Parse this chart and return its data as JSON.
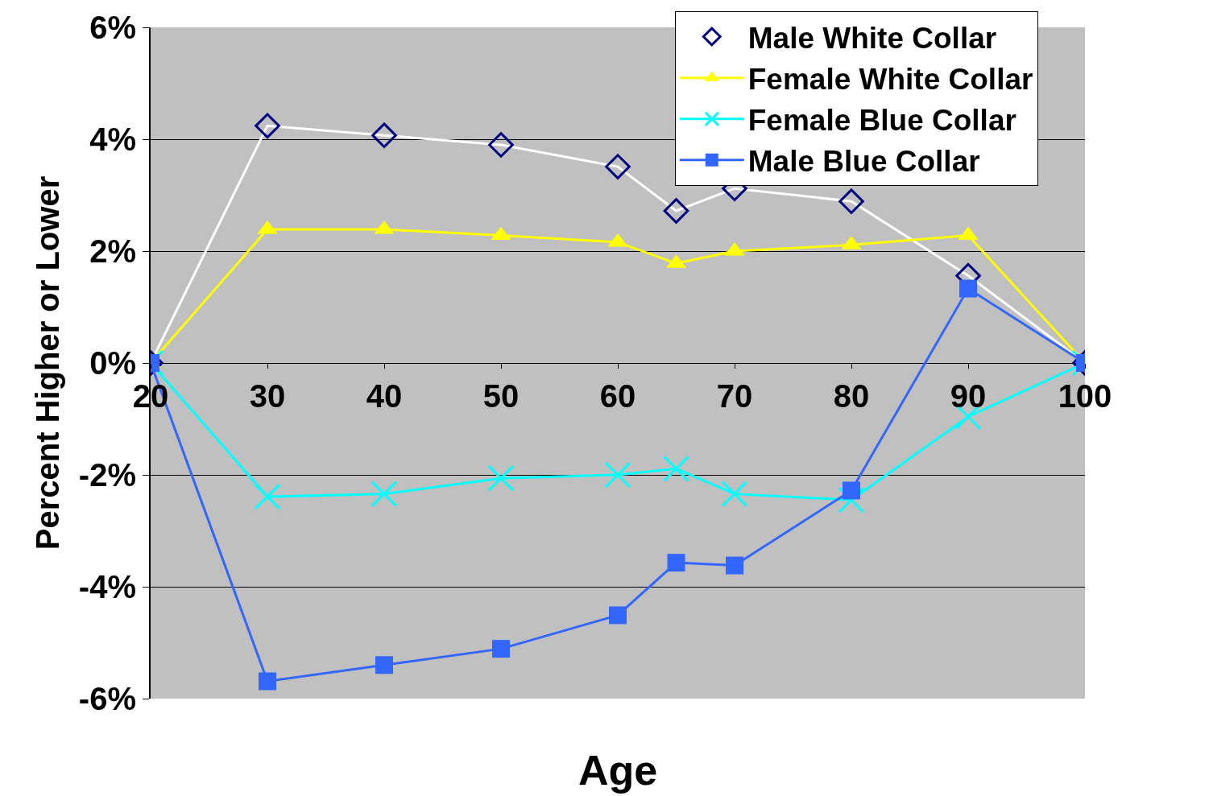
{
  "chart_data": {
    "type": "line",
    "xlabel": "Age",
    "ylabel": "Percent Higher or Lower",
    "x": [
      20,
      30,
      40,
      50,
      60,
      65,
      70,
      80,
      90,
      100
    ],
    "series": [
      {
        "name": "Male White Collar",
        "color": "#000080",
        "marker": "diamond",
        "values": [
          0,
          4.24,
          4.07,
          3.9,
          3.51,
          2.72,
          3.12,
          2.89,
          1.56,
          0
        ]
      },
      {
        "name": "Female White Collar",
        "color": "#ffff00",
        "marker": "triangle",
        "values": [
          0,
          2.39,
          2.39,
          2.28,
          2.16,
          1.78,
          2.0,
          2.11,
          2.28,
          0
        ]
      },
      {
        "name": "Female Blue Collar",
        "color": "#00ffff",
        "marker": "cross",
        "values": [
          0,
          -2.39,
          -2.34,
          -2.06,
          -2.0,
          -1.89,
          -2.34,
          -2.45,
          -0.96,
          0
        ]
      },
      {
        "name": "Male Blue Collar",
        "color": "#3366ff",
        "marker": "square",
        "values": [
          0,
          -5.69,
          -5.4,
          -5.11,
          -4.51,
          -3.57,
          -3.62,
          -2.28,
          1.33,
          0
        ]
      }
    ],
    "xlim": [
      20,
      100
    ],
    "xticks": [
      20,
      30,
      40,
      50,
      60,
      70,
      80,
      90,
      100
    ],
    "ylim": [
      -6,
      6
    ],
    "yticks": [
      {
        "value": -6,
        "label": "-6%"
      },
      {
        "value": -4,
        "label": "-4%"
      },
      {
        "value": -2,
        "label": "-2%"
      },
      {
        "value": 0,
        "label": "0%"
      },
      {
        "value": 2,
        "label": "2%"
      },
      {
        "value": 4,
        "label": "4%"
      },
      {
        "value": 6,
        "label": "6%"
      }
    ],
    "grid": "y",
    "legend": "top right"
  }
}
